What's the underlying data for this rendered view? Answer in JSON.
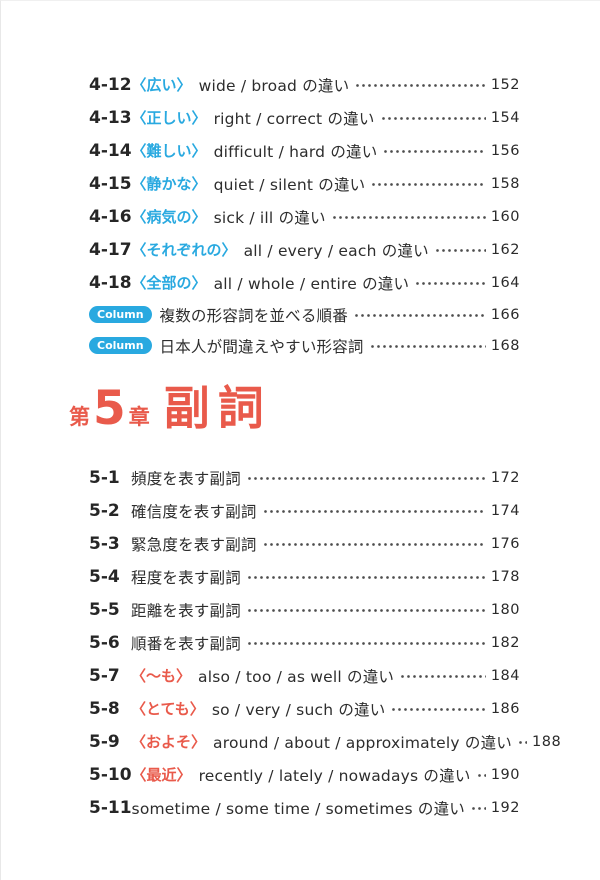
{
  "colors": {
    "accent_blue": "#29a9e0",
    "accent_red": "#e95a4b",
    "text": "#2d2d2d"
  },
  "toc_chapter4": {
    "items": [
      {
        "num": "4-12",
        "bracket": "〈広い〉",
        "text": "wide / broad の違い",
        "page": "152"
      },
      {
        "num": "4-13",
        "bracket": "〈正しい〉",
        "text": "right / correct の違い",
        "page": "154"
      },
      {
        "num": "4-14",
        "bracket": "〈難しい〉",
        "text": "difficult / hard の違い",
        "page": "156"
      },
      {
        "num": "4-15",
        "bracket": "〈静かな〉",
        "text": "quiet / silent の違い",
        "page": "158"
      },
      {
        "num": "4-16",
        "bracket": "〈病気の〉",
        "text": "sick / ill の違い",
        "page": "160"
      },
      {
        "num": "4-17",
        "bracket": "〈それぞれの〉",
        "text": "all / every / each の違い",
        "page": "162"
      },
      {
        "num": "4-18",
        "bracket": "〈全部の〉",
        "text": "all / whole / entire の違い",
        "page": "164"
      }
    ]
  },
  "columns": [
    {
      "badge": "Column",
      "text": "複数の形容詞を並べる順番",
      "page": "166"
    },
    {
      "badge": "Column",
      "text": "日本人が間違えやすい形容詞",
      "page": "168"
    }
  ],
  "chapter5_heading": {
    "prefix": "第",
    "number": "5",
    "suffix": "章",
    "title": "副詞"
  },
  "toc_chapter5": {
    "items": [
      {
        "num": "5-1",
        "bracket": "",
        "text": "頻度を表す副詞",
        "page": "172"
      },
      {
        "num": "5-2",
        "bracket": "",
        "text": "確信度を表す副詞",
        "page": "174"
      },
      {
        "num": "5-3",
        "bracket": "",
        "text": "緊急度を表す副詞",
        "page": "176"
      },
      {
        "num": "5-4",
        "bracket": "",
        "text": "程度を表す副詞",
        "page": "178"
      },
      {
        "num": "5-5",
        "bracket": "",
        "text": "距離を表す副詞",
        "page": "180"
      },
      {
        "num": "5-6",
        "bracket": "",
        "text": "順番を表す副詞",
        "page": "182"
      },
      {
        "num": "5-7",
        "bracket": "〈〜も〉",
        "text": "also / too / as well の違い",
        "page": "184"
      },
      {
        "num": "5-8",
        "bracket": "〈とても〉",
        "text": "so / very / such の違い",
        "page": "186"
      },
      {
        "num": "5-9",
        "bracket": "〈およそ〉",
        "text": "around / about / approximately の違い",
        "page": "188"
      },
      {
        "num": "5-10",
        "bracket": "〈最近〉",
        "text": "recently / lately / nowadays の違い",
        "page": "190"
      },
      {
        "num": "5-11",
        "bracket": "",
        "text": "sometime / some time / sometimes の違い",
        "page": "192"
      }
    ]
  }
}
